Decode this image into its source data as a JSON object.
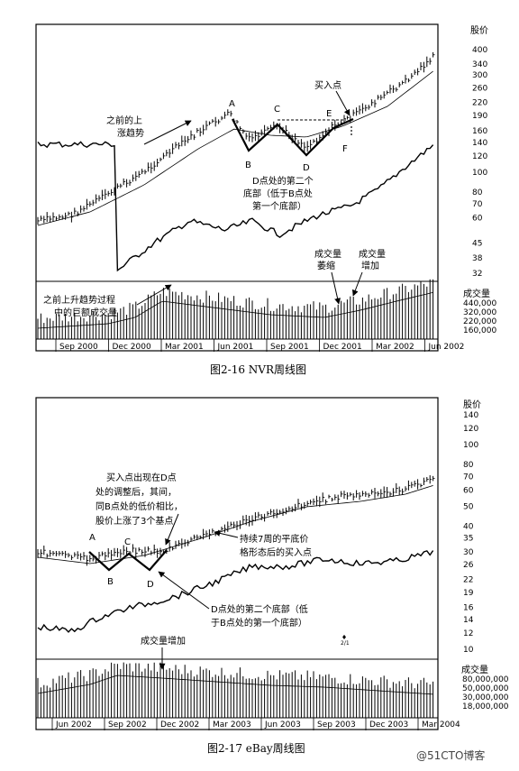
{
  "figures": [
    {
      "caption": "图2-16   NVR周线图",
      "price_axis_title": "股价",
      "price_ticks": [
        400,
        340,
        300,
        260,
        220,
        190,
        160,
        140,
        120,
        100,
        80,
        70,
        60,
        45,
        38,
        32
      ],
      "volume_axis_title": "成交量",
      "volume_ticks": [
        "440,000",
        "320,000",
        "220,000",
        "160,000"
      ],
      "x_labels": [
        "Sep 2000",
        "Dec 2000",
        "Mar 2001",
        "Jun 2001",
        "Sep 2001",
        "Dec 2001",
        "Mar 2002",
        "Jun 2002"
      ],
      "points": {
        "A": "A",
        "B": "B",
        "C": "C",
        "D": "D",
        "E": "E",
        "F": "F"
      },
      "annotations": {
        "uptrend": [
          "之前的上",
          "涨趋势"
        ],
        "buy_point": "买入点",
        "second_bottom": [
          "D点处的第二个",
          "底部（低于B点处",
          "第一个底部）"
        ],
        "volume_dry": [
          "成交量",
          "萎缩"
        ],
        "volume_up": [
          "成交量",
          "增加"
        ],
        "prior_volume": [
          "之前上升趋势过程",
          "中的巨额成交量"
        ]
      }
    },
    {
      "caption": "图2-17   eBay周线图",
      "price_axis_title": "股价",
      "price_ticks": [
        140,
        120,
        100,
        80,
        70,
        60,
        50,
        40,
        35,
        30,
        26,
        22,
        19,
        16,
        14,
        12,
        10
      ],
      "volume_axis_title": "成交量",
      "volume_ticks": [
        "80,000,000",
        "50,000,000",
        "30,000,000",
        "18,000,000"
      ],
      "x_labels": [
        "Jun 2002",
        "Sep 2002",
        "Dec 2002",
        "Mar 2003",
        "Jun 2003",
        "Sep 2003",
        "Dec 2003",
        "Mar 2004"
      ],
      "points": {
        "A": "A",
        "B": "B",
        "C": "C",
        "D": "D"
      },
      "annotations": {
        "buy_point": [
          "买入点出现在D点",
          "处的调整后，其间，",
          "同B点处的低价相比，",
          "股价上涨了3个基点"
        ],
        "flat_base": [
          "持续7周的平底价",
          "格形态后的买入点"
        ],
        "second_bottom": [
          "D点处的第二个底部（低",
          "于B点处的第一个底部）"
        ],
        "volume_up": "成交量增加",
        "small_mark": "2/1"
      }
    }
  ],
  "watermark": "@51CTO博客"
}
